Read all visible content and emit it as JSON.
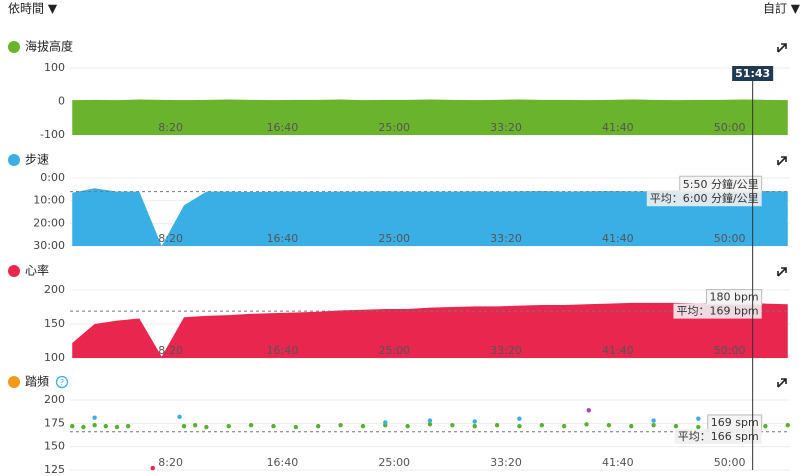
{
  "header": {
    "view": "依時間 ▼",
    "custom": "自訂 ▼"
  },
  "cursor": {
    "x": 3103,
    "label": "51:43"
  },
  "chart_data": [
    {
      "type": "area",
      "title": "海拔高度",
      "color": "#6ab42d",
      "xlim": [
        50,
        3270
      ],
      "xticks": [
        {
          "value": 500,
          "label": "8:20"
        },
        {
          "value": 1000,
          "label": "16:40"
        },
        {
          "value": 1500,
          "label": "25:00"
        },
        {
          "value": 2000,
          "label": "33:20"
        },
        {
          "value": 2500,
          "label": "41:40"
        },
        {
          "value": 3000,
          "label": "50:00"
        }
      ],
      "ylim": [
        -100,
        100
      ],
      "yticks": [
        -100,
        0,
        100
      ],
      "x": [
        60,
        160,
        260,
        360,
        460,
        560,
        660,
        760,
        860,
        960,
        1060,
        1160,
        1260,
        1360,
        1460,
        1560,
        1660,
        1760,
        1860,
        1960,
        2060,
        2160,
        2260,
        2360,
        2460,
        2560,
        2660,
        2760,
        2860,
        2960,
        3060,
        3160,
        3260
      ],
      "values": [
        4,
        5,
        4,
        6,
        5,
        4,
        5,
        6,
        5,
        4,
        5,
        5,
        6,
        4,
        5,
        5,
        6,
        5,
        4,
        5,
        6,
        5,
        5,
        4,
        5,
        6,
        5,
        4,
        5,
        5,
        6,
        5,
        4
      ]
    },
    {
      "type": "area",
      "title": "步速",
      "color": "#3aafe6",
      "xlim": [
        50,
        3270
      ],
      "xticks": [
        {
          "value": 500,
          "label": "8:20"
        },
        {
          "value": 1000,
          "label": "16:40"
        },
        {
          "value": 1500,
          "label": "25:00"
        },
        {
          "value": 2000,
          "label": "33:20"
        },
        {
          "value": 2500,
          "label": "41:40"
        },
        {
          "value": 3000,
          "label": "50:00"
        }
      ],
      "ylim": [
        30,
        0
      ],
      "yticks": [
        {
          "value": 0,
          "label": "0:00"
        },
        {
          "value": 10,
          "label": "10:00"
        },
        {
          "value": 20,
          "label": "20:00"
        },
        {
          "value": 30,
          "label": "30:00"
        }
      ],
      "x": [
        60,
        160,
        260,
        360,
        460,
        560,
        660,
        760,
        860,
        960,
        1060,
        1160,
        1260,
        1360,
        1460,
        1560,
        1660,
        1760,
        1860,
        1960,
        2060,
        2160,
        2260,
        2360,
        2460,
        2560,
        2660,
        2760,
        2860,
        2960,
        3060,
        3160,
        3260
      ],
      "values": [
        6.5,
        4.5,
        6,
        6,
        30,
        12,
        6,
        6,
        6.2,
        6,
        6,
        6.1,
        6,
        6,
        5.9,
        6,
        6,
        6,
        5.9,
        6,
        5.9,
        5.8,
        6,
        5.9,
        5.8,
        5.9,
        5.9,
        5.8,
        5.9,
        5.8,
        5.8,
        5.8,
        5.9
      ],
      "average": 6,
      "average_label": "平均：6:00 分鐘/公里",
      "current": {
        "value": 5.833,
        "label": "5:50 分鐘/公里"
      }
    },
    {
      "type": "area",
      "title": "心率",
      "color": "#e8264e",
      "xlim": [
        50,
        3270
      ],
      "xticks": [
        {
          "value": 500,
          "label": "8:20"
        },
        {
          "value": 1000,
          "label": "16:40"
        },
        {
          "value": 1500,
          "label": "25:00"
        },
        {
          "value": 2000,
          "label": "33:20"
        },
        {
          "value": 2500,
          "label": "41:40"
        },
        {
          "value": 3000,
          "label": "50:00"
        }
      ],
      "ylim": [
        100,
        200
      ],
      "yticks": [
        100,
        150,
        200
      ],
      "x": [
        60,
        160,
        260,
        360,
        460,
        560,
        660,
        760,
        860,
        960,
        1060,
        1160,
        1260,
        1360,
        1460,
        1560,
        1660,
        1760,
        1860,
        1960,
        2060,
        2160,
        2260,
        2360,
        2460,
        2560,
        2660,
        2760,
        2860,
        2960,
        3060,
        3160,
        3260
      ],
      "values": [
        122,
        150,
        155,
        158,
        102,
        160,
        162,
        163,
        165,
        166,
        167,
        168,
        170,
        171,
        172,
        172,
        174,
        175,
        176,
        176,
        177,
        178,
        178,
        179,
        180,
        181,
        181,
        181,
        180,
        181,
        182,
        180,
        179
      ],
      "average": 169,
      "average_label": "平均：169 bpm",
      "current": {
        "value": 180,
        "label": "180 bpm"
      }
    },
    {
      "type": "scatter",
      "title": "踏頻",
      "color": "#f39a1a",
      "xlim": [
        50,
        3270
      ],
      "xticks": [
        {
          "value": 500,
          "label": "8:20"
        },
        {
          "value": 1000,
          "label": "16:40"
        },
        {
          "value": 1500,
          "label": "25:00"
        },
        {
          "value": 2000,
          "label": "33:20"
        },
        {
          "value": 2500,
          "label": "41:40"
        },
        {
          "value": 3000,
          "label": "50:00"
        }
      ],
      "ylim": [
        125,
        200
      ],
      "yticks": [
        125,
        150,
        175,
        200
      ],
      "series": [
        {
          "color": "#58b030",
          "x": [
            60,
            110,
            160,
            210,
            260,
            310,
            560,
            610,
            660,
            760,
            860,
            960,
            1060,
            1160,
            1260,
            1360,
            1460,
            1560,
            1660,
            1760,
            1860,
            1960,
            2060,
            2160,
            2260,
            2360,
            2460,
            2560,
            2660,
            2760,
            2860,
            2960,
            3060,
            3160,
            3260
          ],
          "values": [
            172,
            171,
            173,
            172,
            171,
            172,
            172,
            173,
            171,
            172,
            173,
            172,
            171,
            172,
            173,
            172,
            173,
            172,
            174,
            173,
            172,
            173,
            172,
            173,
            172,
            174,
            173,
            172,
            173,
            172,
            171,
            172,
            173,
            172,
            173
          ]
        },
        {
          "color": "#3aafe6",
          "x": [
            160,
            540,
            1460,
            1660,
            1860,
            2060,
            2660,
            2860,
            3010
          ],
          "values": [
            181,
            182,
            176,
            178,
            177,
            180,
            178,
            180,
            175
          ]
        },
        {
          "color": "#b03bb0",
          "x": [
            2370
          ],
          "values": [
            189
          ]
        },
        {
          "color": "#e8264e",
          "x": [
            420
          ],
          "values": [
            127
          ]
        }
      ],
      "average": 166,
      "average_label": "平均：166 spm",
      "current": {
        "value": 169,
        "label": "169 spm"
      }
    }
  ]
}
